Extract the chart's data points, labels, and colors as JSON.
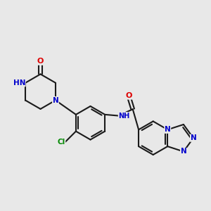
{
  "background_color": "#e8e8e8",
  "bond_color": "#1a1a1a",
  "bond_width": 1.5,
  "atom_colors": {
    "N": "#0000cc",
    "O": "#dd0000",
    "Cl": "#008800",
    "NH": "#0000cc"
  },
  "font_size": 7.5,
  "figsize": [
    3.0,
    3.0
  ],
  "dpi": 100
}
